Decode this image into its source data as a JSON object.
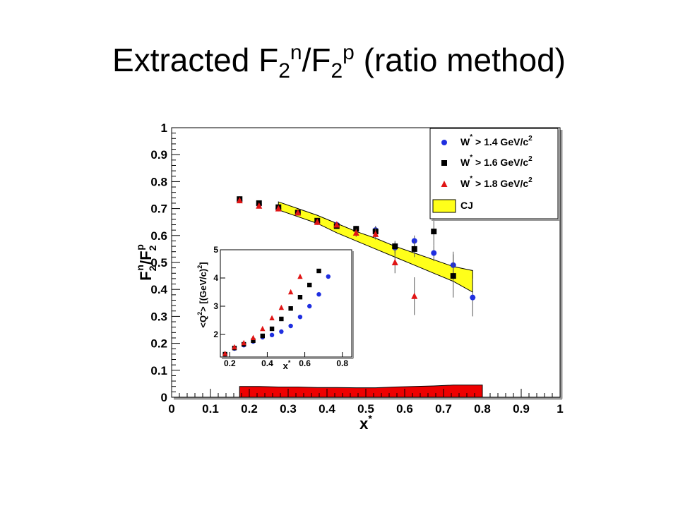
{
  "slide": {
    "title_pre": "Extracted F",
    "title_sub1": "2",
    "title_sup1": "n",
    "title_mid": "/F",
    "title_sub2": "2",
    "title_sup2": "p",
    "title_post": " (ratio method)"
  },
  "colors": {
    "blue": "#1f2fe0",
    "black": "#000000",
    "red": "#e01515",
    "band": "#ffff1a",
    "syst": "#ee0000"
  },
  "chart_data": [
    {
      "type": "scatter",
      "xlabel": "x",
      "xlabel_sup": "*",
      "ylabel": "F",
      "ylabel_sub1": "2",
      "ylabel_sup1": "n",
      "ylabel_slash": "/F",
      "ylabel_sub2": "2",
      "ylabel_sup2": "p",
      "xlim": [
        0,
        1
      ],
      "ylim": [
        0,
        1
      ],
      "xticks": [
        "0",
        "0.1",
        "0.2",
        "0.3",
        "0.4",
        "0.5",
        "0.6",
        "0.7",
        "0.8",
        "0.9",
        "1"
      ],
      "yticks": [
        "0",
        "0.1",
        "0.2",
        "0.3",
        "0.4",
        "0.5",
        "0.6",
        "0.7",
        "0.8",
        "0.9",
        "1"
      ],
      "legend_position": "top-right",
      "legend": [
        {
          "label_pre": "W",
          "label_sup": "*",
          "label_post": " > 1.4 GeV/c",
          "label_sup2": "2",
          "marker": "circle",
          "color": "#1f2fe0"
        },
        {
          "label_pre": "W",
          "label_sup": "*",
          "label_post": " > 1.6 GeV/c",
          "label_sup2": "2",
          "marker": "square",
          "color": "#000000"
        },
        {
          "label_pre": "W",
          "label_sup": "*",
          "label_post": " > 1.8 GeV/c",
          "label_sup2": "2",
          "marker": "triangle",
          "color": "#e01515"
        },
        {
          "label_pre": "CJ",
          "label_sup": "",
          "label_post": "",
          "label_sup2": "",
          "marker": "box",
          "color": "#ffff1a"
        }
      ],
      "series": [
        {
          "marker": "circle",
          "color": "#1f2fe0",
          "points": [
            {
              "x": 0.175,
              "y": 0.73,
              "err": 0.01
            },
            {
              "x": 0.225,
              "y": 0.715,
              "err": 0.01
            },
            {
              "x": 0.275,
              "y": 0.7,
              "err": 0.01
            },
            {
              "x": 0.325,
              "y": 0.685,
              "err": 0.01
            },
            {
              "x": 0.375,
              "y": 0.65,
              "err": 0.01
            },
            {
              "x": 0.425,
              "y": 0.64,
              "err": 0.01
            },
            {
              "x": 0.475,
              "y": 0.625,
              "err": 0.01
            },
            {
              "x": 0.525,
              "y": 0.62,
              "err": 0.015
            },
            {
              "x": 0.575,
              "y": 0.555,
              "err": 0.02
            },
            {
              "x": 0.625,
              "y": 0.58,
              "err": 0.02
            },
            {
              "x": 0.675,
              "y": 0.535,
              "err": 0.03
            },
            {
              "x": 0.725,
              "y": 0.49,
              "err": 0.05
            },
            {
              "x": 0.775,
              "y": 0.37,
              "err": 0.07
            }
          ]
        },
        {
          "marker": "square",
          "color": "#000000",
          "points": [
            {
              "x": 0.175,
              "y": 0.735,
              "err": 0.01
            },
            {
              "x": 0.225,
              "y": 0.72,
              "err": 0.01
            },
            {
              "x": 0.275,
              "y": 0.705,
              "err": 0.01
            },
            {
              "x": 0.325,
              "y": 0.685,
              "err": 0.01
            },
            {
              "x": 0.375,
              "y": 0.655,
              "err": 0.01
            },
            {
              "x": 0.425,
              "y": 0.635,
              "err": 0.01
            },
            {
              "x": 0.475,
              "y": 0.625,
              "err": 0.01
            },
            {
              "x": 0.525,
              "y": 0.615,
              "err": 0.02
            },
            {
              "x": 0.575,
              "y": 0.56,
              "err": 0.02
            },
            {
              "x": 0.625,
              "y": 0.55,
              "err": 0.03
            },
            {
              "x": 0.675,
              "y": 0.615,
              "err": 0.05
            },
            {
              "x": 0.725,
              "y": 0.45,
              "err": 0.08
            }
          ]
        },
        {
          "marker": "triangle",
          "color": "#e01515",
          "points": [
            {
              "x": 0.175,
              "y": 0.73,
              "err": 0.01
            },
            {
              "x": 0.225,
              "y": 0.71,
              "err": 0.01
            },
            {
              "x": 0.275,
              "y": 0.7,
              "err": 0.01
            },
            {
              "x": 0.325,
              "y": 0.685,
              "err": 0.01
            },
            {
              "x": 0.375,
              "y": 0.65,
              "err": 0.01
            },
            {
              "x": 0.425,
              "y": 0.64,
              "err": 0.01
            },
            {
              "x": 0.475,
              "y": 0.61,
              "err": 0.015
            },
            {
              "x": 0.525,
              "y": 0.605,
              "err": 0.02
            },
            {
              "x": 0.575,
              "y": 0.5,
              "err": 0.04
            },
            {
              "x": 0.625,
              "y": 0.375,
              "err": 0.07
            }
          ]
        }
      ],
      "band": {
        "x": [
          0.275,
          0.325,
          0.375,
          0.425,
          0.475,
          0.525,
          0.575,
          0.625,
          0.675,
          0.725,
          0.775
        ],
        "upper": [
          0.725,
          0.7,
          0.675,
          0.645,
          0.615,
          0.59,
          0.56,
          0.535,
          0.51,
          0.485,
          0.47
        ],
        "lower": [
          0.695,
          0.67,
          0.645,
          0.61,
          0.58,
          0.55,
          0.52,
          0.49,
          0.46,
          0.43,
          0.39
        ]
      },
      "systematic_band": {
        "x": [
          0.175,
          0.225,
          0.275,
          0.325,
          0.375,
          0.425,
          0.475,
          0.525,
          0.575,
          0.625,
          0.675,
          0.725,
          0.775,
          0.8
        ],
        "height": [
          0.04,
          0.04,
          0.038,
          0.038,
          0.036,
          0.036,
          0.035,
          0.035,
          0.038,
          0.04,
          0.042,
          0.045,
          0.045,
          0.045
        ]
      }
    },
    {
      "type": "scatter",
      "xlabel": "x",
      "xlabel_sup": "*",
      "ylabel": "<Q",
      "ylabel_sup": "2",
      "ylabel_post": "> [(GeV/c)",
      "ylabel_sup2": "2",
      "ylabel_end": "]",
      "xlim": [
        0.15,
        0.85
      ],
      "ylim": [
        1.2,
        5
      ],
      "xticks": [
        {
          "value": 0.2,
          "label": "0.2"
        },
        {
          "value": 0.4,
          "label": "0.4"
        },
        {
          "value": 0.6,
          "label": "0.6"
        },
        {
          "value": 0.8,
          "label": "0.8"
        }
      ],
      "yticks": [
        {
          "value": 2,
          "label": "2"
        },
        {
          "value": 3,
          "label": "3"
        },
        {
          "value": 4,
          "label": "4"
        },
        {
          "value": 5,
          "label": "5"
        }
      ],
      "series": [
        {
          "marker": "circle",
          "color": "#1f2fe0",
          "points": [
            {
              "x": 0.175,
              "y": 1.3
            },
            {
              "x": 0.225,
              "y": 1.5
            },
            {
              "x": 0.275,
              "y": 1.62
            },
            {
              "x": 0.325,
              "y": 1.75
            },
            {
              "x": 0.375,
              "y": 1.9
            },
            {
              "x": 0.425,
              "y": 1.98
            },
            {
              "x": 0.475,
              "y": 2.1
            },
            {
              "x": 0.525,
              "y": 2.3
            },
            {
              "x": 0.575,
              "y": 2.62
            },
            {
              "x": 0.625,
              "y": 3.0
            },
            {
              "x": 0.675,
              "y": 3.42
            },
            {
              "x": 0.725,
              "y": 4.05
            }
          ]
        },
        {
          "marker": "square",
          "color": "#000000",
          "points": [
            {
              "x": 0.175,
              "y": 1.3
            },
            {
              "x": 0.225,
              "y": 1.52
            },
            {
              "x": 0.275,
              "y": 1.65
            },
            {
              "x": 0.325,
              "y": 1.78
            },
            {
              "x": 0.375,
              "y": 1.95
            },
            {
              "x": 0.425,
              "y": 2.2
            },
            {
              "x": 0.475,
              "y": 2.55
            },
            {
              "x": 0.525,
              "y": 2.92
            },
            {
              "x": 0.575,
              "y": 3.32
            },
            {
              "x": 0.625,
              "y": 3.75
            },
            {
              "x": 0.675,
              "y": 4.25
            }
          ]
        },
        {
          "marker": "triangle",
          "color": "#e01515",
          "points": [
            {
              "x": 0.175,
              "y": 1.32
            },
            {
              "x": 0.225,
              "y": 1.55
            },
            {
              "x": 0.275,
              "y": 1.7
            },
            {
              "x": 0.325,
              "y": 1.88
            },
            {
              "x": 0.375,
              "y": 2.2
            },
            {
              "x": 0.425,
              "y": 2.58
            },
            {
              "x": 0.475,
              "y": 2.95
            },
            {
              "x": 0.525,
              "y": 3.5
            },
            {
              "x": 0.575,
              "y": 4.05
            }
          ]
        }
      ]
    }
  ]
}
